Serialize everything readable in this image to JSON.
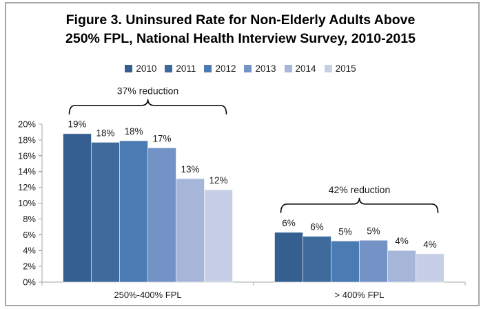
{
  "title": {
    "line1": "Figure 3. Uninsured Rate for Non-Elderly Adults Above",
    "line2": "250% FPL, National Health Interview Survey, 2010-2015"
  },
  "chart_data": {
    "type": "bar",
    "title": "Figure 3. Uninsured Rate for Non-Elderly Adults Above 250% FPL, National Health Interview Survey, 2010-2015",
    "categories": [
      "250%-400% FPL",
      "> 400% FPL"
    ],
    "series": [
      {
        "name": "2010",
        "color": "#365F91",
        "values": [
          18.8,
          6.3
        ],
        "data_labels": [
          "19%",
          "6%"
        ]
      },
      {
        "name": "2011",
        "color": "#3F6A9C",
        "values": [
          17.7,
          5.8
        ],
        "data_labels": [
          "18%",
          "6%"
        ]
      },
      {
        "name": "2012",
        "color": "#4A7BB3",
        "values": [
          17.9,
          5.2
        ],
        "data_labels": [
          "18%",
          "5%"
        ]
      },
      {
        "name": "2013",
        "color": "#7393C7",
        "values": [
          17.0,
          5.3
        ],
        "data_labels": [
          "17%",
          "5%"
        ]
      },
      {
        "name": "2014",
        "color": "#A5B6D9",
        "values": [
          13.1,
          4.0
        ],
        "data_labels": [
          "13%",
          "4%"
        ]
      },
      {
        "name": "2015",
        "color": "#C6CFE5",
        "values": [
          11.7,
          3.6
        ],
        "data_labels": [
          "12%",
          "4%"
        ]
      }
    ],
    "xlabel": "",
    "ylabel": "",
    "ylim": [
      0,
      20
    ],
    "ytick_step": 2,
    "ytick_labels": [
      "0%",
      "2%",
      "4%",
      "6%",
      "8%",
      "10%",
      "12%",
      "14%",
      "16%",
      "18%",
      "20%"
    ],
    "grid": false,
    "legend_position": "top",
    "annotations": [
      {
        "text": "37% reduction",
        "category": "250%-400% FPL"
      },
      {
        "text": "42% reduction",
        "category": "> 400% FPL"
      }
    ],
    "axis_color": "#a6a6a6",
    "text_color": "#1a1a1a"
  }
}
